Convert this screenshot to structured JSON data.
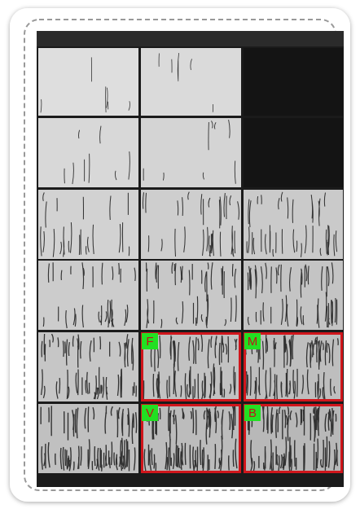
{
  "tags": [
    "F",
    "M",
    "V",
    "B"
  ]
}
